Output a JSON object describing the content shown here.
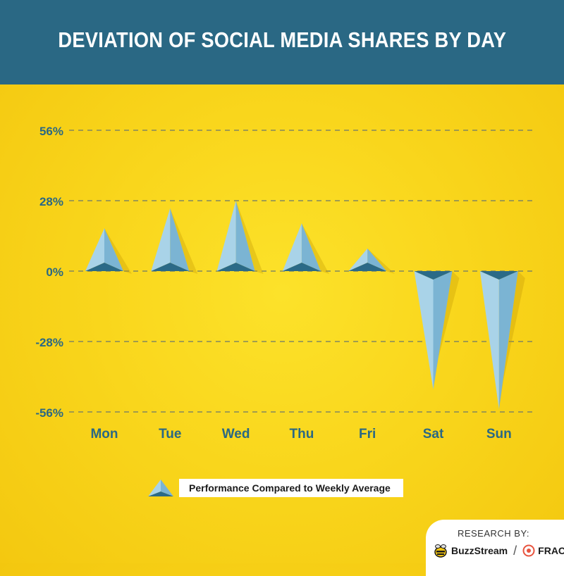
{
  "title": "DEVIATION OF SOCIAL MEDIA SHARES BY DAY",
  "chart_data": {
    "type": "bar",
    "title": "DEVIATION OF SOCIAL MEDIA SHARES BY DAY",
    "categories": [
      "Mon",
      "Tue",
      "Wed",
      "Thu",
      "Fri",
      "Sat",
      "Sun"
    ],
    "series": [
      {
        "name": "Performance Compared to Weekly Average",
        "values": [
          17,
          25,
          28,
          19,
          9,
          -47,
          -55
        ]
      }
    ],
    "yticks": [
      56,
      28,
      0,
      -28,
      -56
    ],
    "ytick_labels": [
      "56%",
      "28%",
      "0%",
      "-28%",
      "-56%"
    ],
    "ylim": [
      -56,
      56
    ],
    "grid": true,
    "legend_position": "bottom-center",
    "colors": {
      "bar_light": "#A9D3E8",
      "bar_mid": "#7BB4D3",
      "bar_dark": "#2B6A87",
      "axis_label": "#2A6884",
      "gridline": "#6E7A6A"
    }
  },
  "legend": {
    "label": "Performance Compared to Weekly Average"
  },
  "credit": {
    "label": "RESEARCH BY:",
    "brand1": "BuzzStream",
    "brand2": "FRACTL",
    "bee_icon": "bee-icon",
    "fractl_icon": "fractl-icon"
  }
}
